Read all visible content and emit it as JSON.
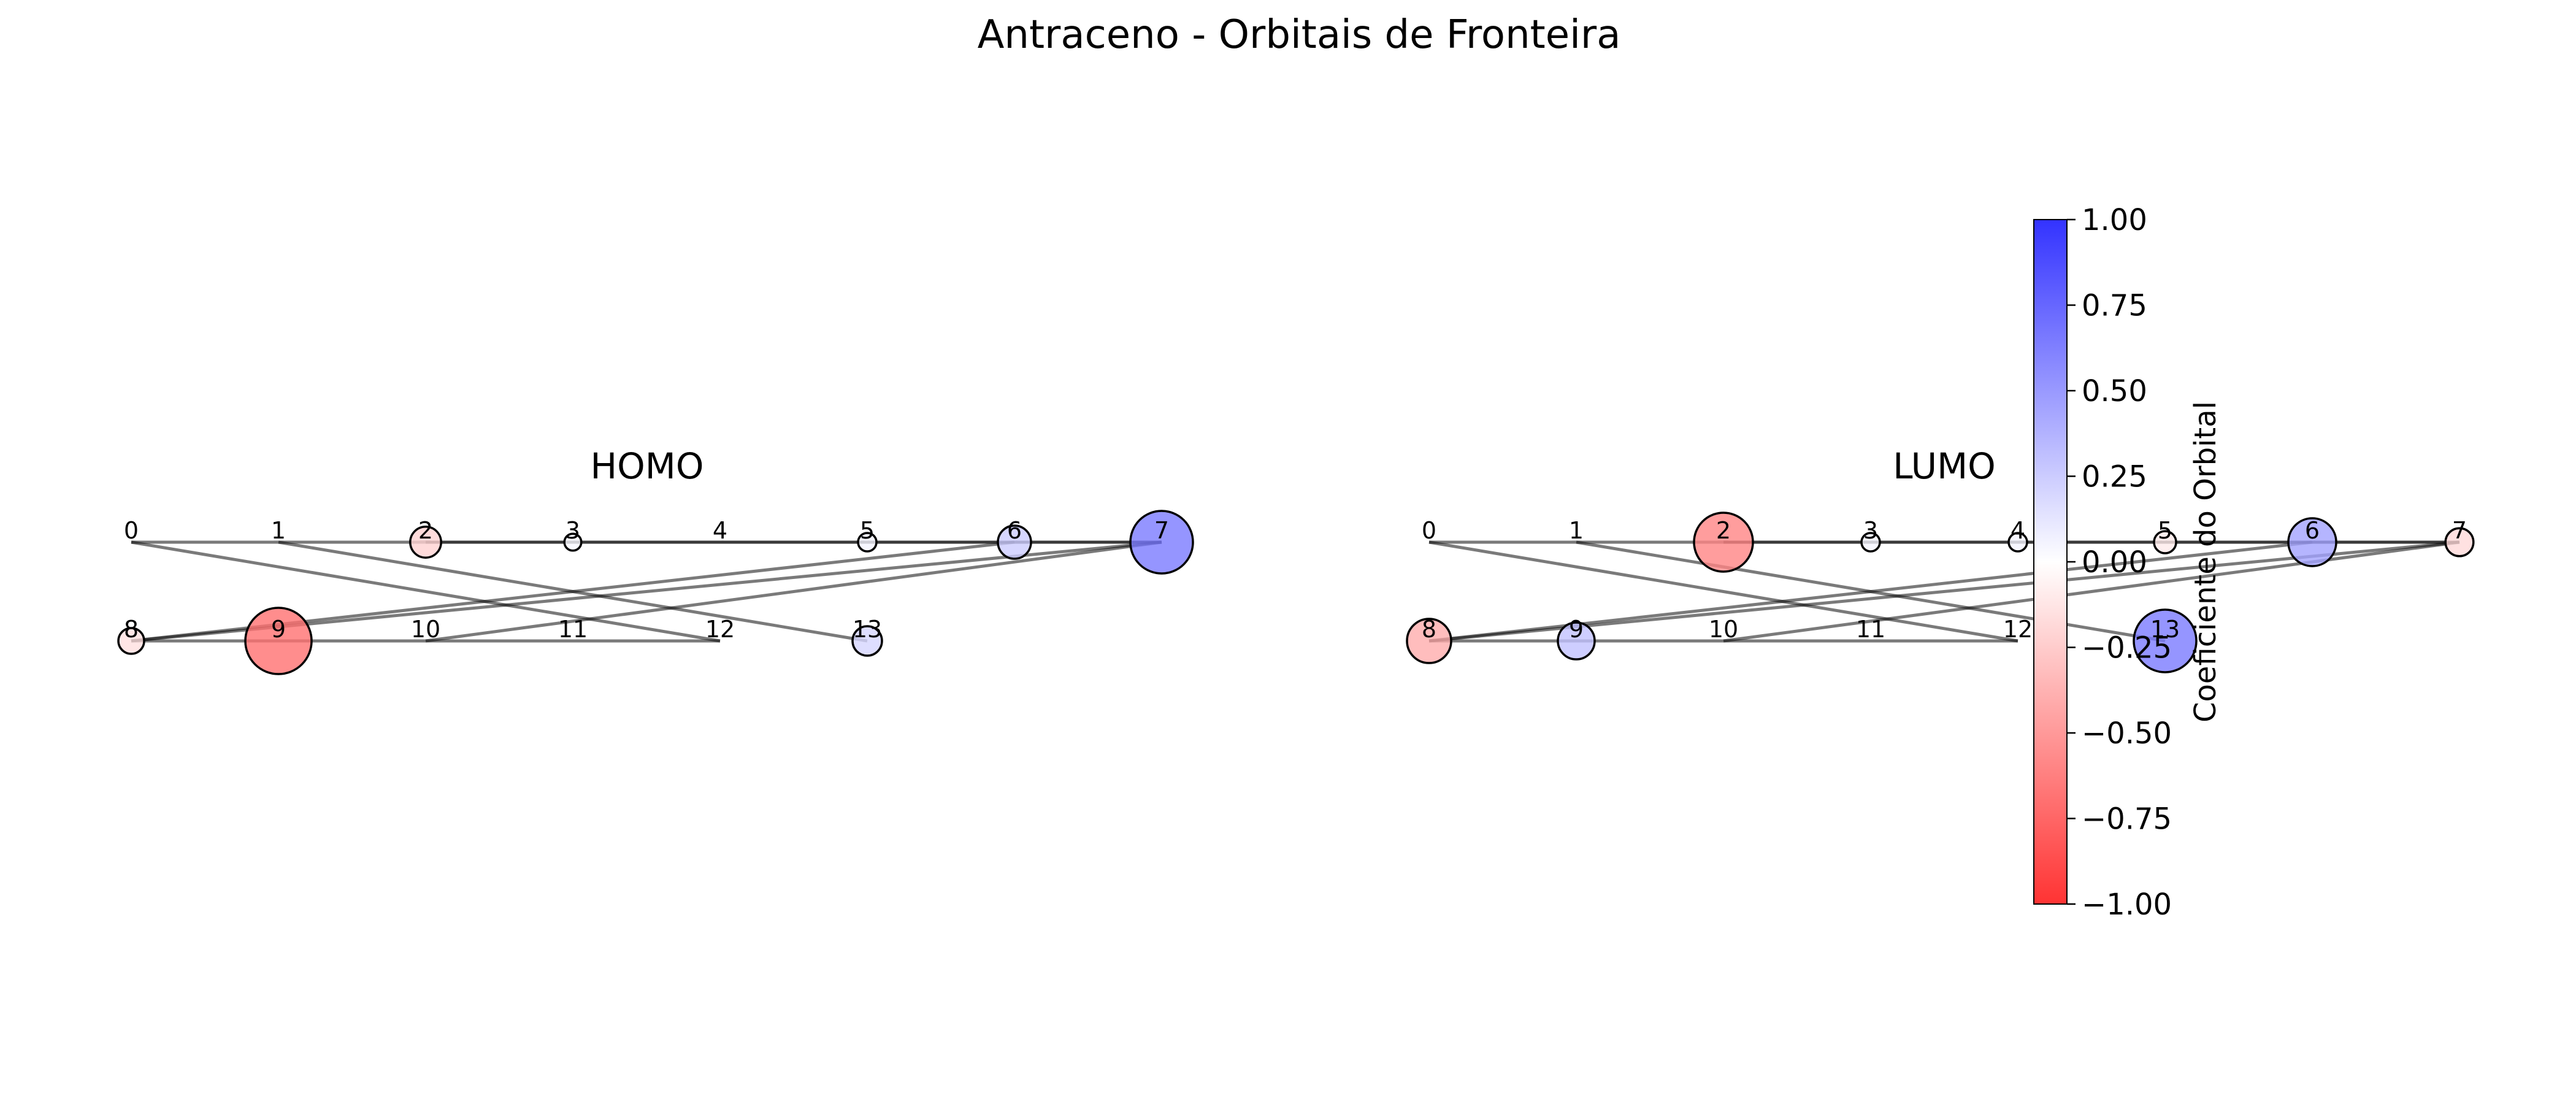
{
  "title": "Antraceno - Orbitais de Fronteira",
  "colorbar": {
    "label": "Coeficiente do Orbital",
    "min": -1.0,
    "max": 1.0,
    "ticks": [
      "1.00",
      "0.75",
      "0.50",
      "0.25",
      "0.00",
      "−0.25",
      "−0.50",
      "−0.75",
      "−1.00"
    ],
    "tick_values": [
      1.0,
      0.75,
      0.5,
      0.25,
      0.0,
      -0.25,
      -0.5,
      -0.75,
      -1.0
    ],
    "colors": {
      "negative": "#ff3333",
      "zero": "#ffffff",
      "positive": "#3333ff"
    }
  },
  "node_labels": [
    "0",
    "1",
    "2",
    "3",
    "4",
    "5",
    "6",
    "7",
    "8",
    "9",
    "10",
    "11",
    "12",
    "13"
  ],
  "bonds": [
    [
      0,
      1
    ],
    [
      1,
      2
    ],
    [
      2,
      3
    ],
    [
      3,
      4
    ],
    [
      4,
      5
    ],
    [
      5,
      6
    ],
    [
      6,
      7
    ],
    [
      8,
      9
    ],
    [
      9,
      10
    ],
    [
      10,
      11
    ],
    [
      11,
      12
    ],
    [
      0,
      12
    ],
    [
      1,
      13
    ],
    [
      2,
      7
    ],
    [
      8,
      6
    ],
    [
      8,
      7
    ],
    [
      10,
      7
    ]
  ],
  "panels": [
    {
      "id": "homo",
      "title": "HOMO",
      "coefficients": [
        0.0,
        0.0,
        -0.22,
        0.03,
        0.0,
        0.05,
        0.25,
        0.65,
        -0.15,
        -0.7,
        0.0,
        0.0,
        0.0,
        0.2
      ]
    },
    {
      "id": "lumo",
      "title": "LUMO",
      "coefficients": [
        0.0,
        0.0,
        -0.6,
        0.05,
        0.05,
        -0.1,
        0.45,
        -0.18,
        -0.4,
        0.3,
        0.0,
        0.0,
        0.0,
        0.65
      ]
    }
  ]
}
